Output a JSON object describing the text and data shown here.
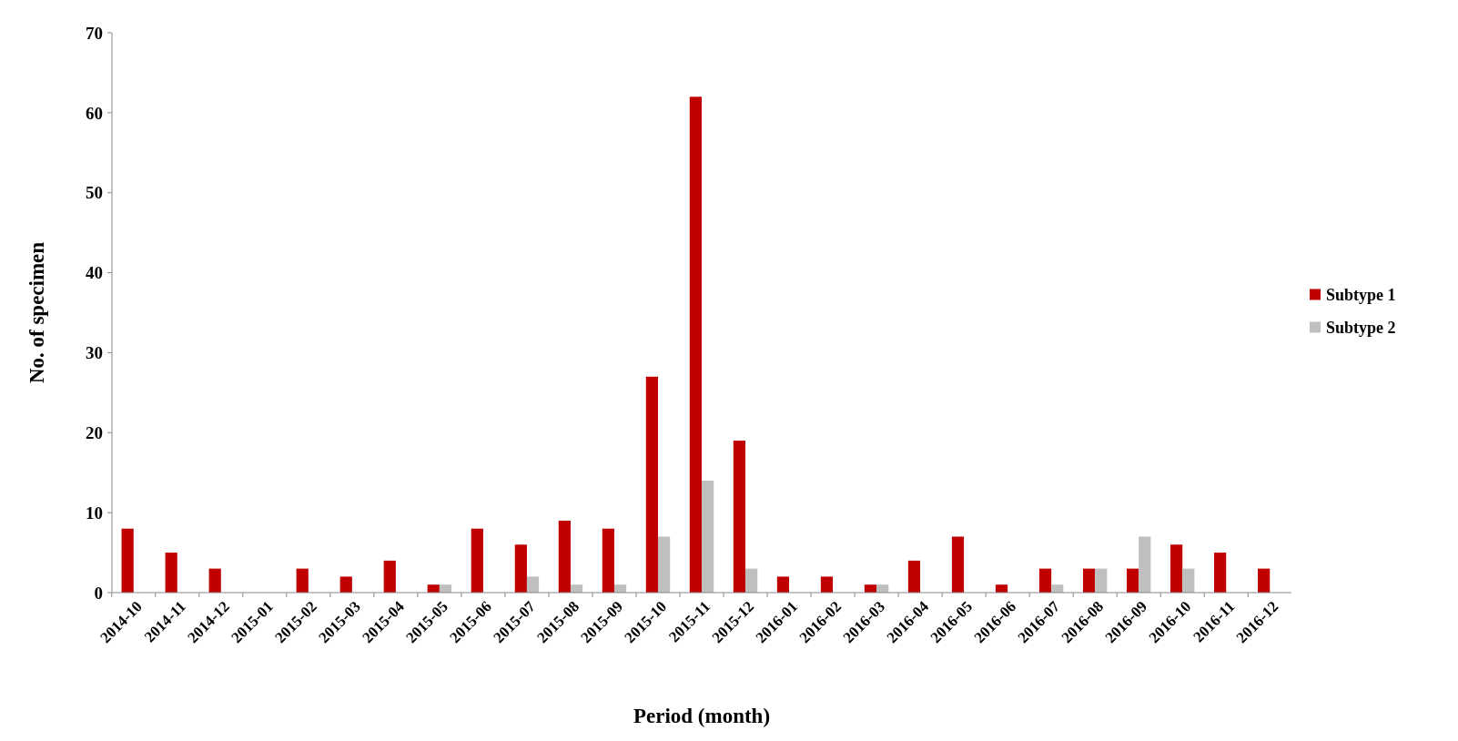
{
  "chart_data": {
    "type": "bar",
    "xlabel": "Period (month)",
    "ylabel": "No. of specimen",
    "categories": [
      "2014-10",
      "2014-11",
      "2014-12",
      "2015-01",
      "2015-02",
      "2015-03",
      "2015-04",
      "2015-05",
      "2015-06",
      "2015-07",
      "2015-08",
      "2015-09",
      "2015-10",
      "2015-11",
      "2015-12",
      "2016-01",
      "2016-02",
      "2016-03",
      "2016-04",
      "2016-05",
      "2016-06",
      "2016-07",
      "2016-08",
      "2016-09",
      "2016-10",
      "2016-11",
      "2016-12"
    ],
    "series": [
      {
        "name": "Subtype 1",
        "color": "#c00000",
        "values": [
          8,
          5,
          3,
          0,
          3,
          2,
          4,
          1,
          8,
          6,
          9,
          8,
          27,
          62,
          19,
          2,
          2,
          1,
          4,
          7,
          1,
          3,
          3,
          3,
          6,
          5,
          3
        ]
      },
      {
        "name": "Subtype 2",
        "color": "#bfbfbf",
        "values": [
          0,
          0,
          0,
          0,
          0,
          0,
          0,
          1,
          0,
          2,
          1,
          1,
          7,
          14,
          3,
          0,
          0,
          1,
          0,
          0,
          0,
          1,
          3,
          7,
          3,
          0,
          0
        ]
      }
    ],
    "ylim": [
      0,
      70
    ],
    "yticks": [
      0,
      10,
      20,
      30,
      40,
      50,
      60,
      70
    ],
    "grid": false,
    "legend": "right"
  }
}
